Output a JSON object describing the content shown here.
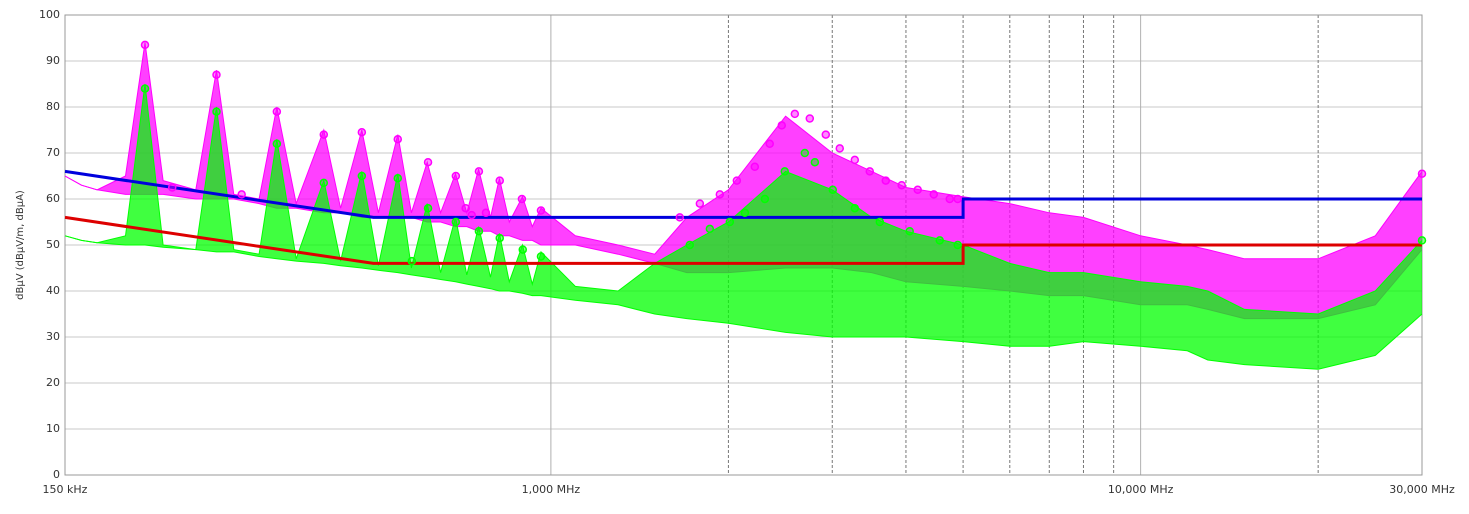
{
  "chart_data": {
    "type": "line",
    "y_label": "dBµV  (dBµV/m, dBµA)",
    "xscale": "log",
    "xlim": [
      0.15,
      30
    ],
    "ylim": [
      0,
      100
    ],
    "xticks": [
      {
        "value": 0.15,
        "label": "150 kHz"
      },
      {
        "value": 1,
        "label": "1,000 MHz"
      },
      {
        "value": 10,
        "label": "10,000 MHz"
      },
      {
        "value": 30,
        "label": "30,000 MHz"
      }
    ],
    "xminor": [
      2,
      3,
      4,
      5,
      6,
      7,
      8,
      9,
      20
    ],
    "yticks": [
      0,
      10,
      20,
      30,
      40,
      50,
      60,
      70,
      80,
      90,
      100
    ],
    "grid": true,
    "series": [
      {
        "color": "#ff00ff",
        "x": [
          0.15,
          0.16,
          0.17,
          0.19,
          0.205,
          0.22,
          0.25,
          0.271,
          0.29,
          0.32,
          0.343,
          0.37,
          0.412,
          0.44,
          0.478,
          0.51,
          0.55,
          0.58,
          0.617,
          0.65,
          0.689,
          0.72,
          0.754,
          0.79,
          0.818,
          0.85,
          0.895,
          0.93,
          0.962,
          1.1,
          1.3,
          1.5,
          1.7,
          2,
          2.5,
          3,
          3.5,
          4,
          5,
          6,
          7,
          8,
          10,
          12,
          13,
          15,
          20,
          25,
          30
        ],
        "values": [
          65,
          63,
          62,
          65,
          94,
          64,
          62,
          88,
          61,
          60,
          80,
          59,
          75,
          58,
          75,
          57,
          74,
          57,
          68,
          57,
          65.5,
          57,
          66.5,
          56,
          64.5,
          55,
          60.5,
          54,
          58,
          52,
          50,
          48,
          56,
          62,
          78,
          70,
          66,
          62.5,
          60.5,
          59,
          57,
          56,
          52,
          50,
          49,
          47,
          47,
          52,
          66
        ],
        "low": [
          65,
          63,
          62,
          61,
          61,
          61,
          60,
          60,
          60,
          59,
          58,
          58,
          57,
          57,
          56,
          56,
          56,
          56,
          55,
          55,
          54,
          54,
          53,
          53,
          52,
          52,
          51,
          51,
          50,
          50,
          48,
          46,
          44,
          44,
          45,
          45,
          44,
          42,
          41,
          40,
          39,
          39,
          37,
          37,
          36,
          34,
          34,
          37,
          49
        ]
      },
      {
        "color": "#00ff00",
        "x": [
          0.15,
          0.16,
          0.17,
          0.19,
          0.205,
          0.22,
          0.25,
          0.271,
          0.29,
          0.32,
          0.343,
          0.37,
          0.412,
          0.44,
          0.478,
          0.51,
          0.55,
          0.58,
          0.617,
          0.65,
          0.689,
          0.72,
          0.754,
          0.79,
          0.818,
          0.85,
          0.895,
          0.93,
          0.962,
          1.1,
          1.3,
          1.5,
          1.7,
          2,
          2.5,
          3,
          3.5,
          4,
          5,
          6,
          7,
          8,
          10,
          12,
          13,
          15,
          20,
          25,
          30
        ],
        "values": [
          52,
          51,
          50.5,
          52,
          85,
          50,
          49,
          80,
          49,
          48,
          73,
          47,
          64,
          46.5,
          66,
          45.5,
          65.5,
          45,
          59,
          44,
          56,
          43.5,
          54,
          43,
          52.5,
          42,
          50,
          41.5,
          48.5,
          41,
          40,
          46,
          50,
          55,
          66,
          62,
          56,
          53,
          50,
          46,
          44,
          44,
          42,
          41,
          40,
          36,
          35,
          40,
          51
        ],
        "low": [
          52,
          51,
          50.5,
          50,
          50,
          49.5,
          49,
          48.5,
          48.5,
          47.5,
          47,
          46.5,
          46,
          45.5,
          45,
          44.5,
          44,
          43.5,
          43,
          42.5,
          42,
          41.5,
          41,
          40.5,
          40,
          40,
          39.5,
          39,
          39,
          38,
          37,
          35,
          34,
          33,
          31,
          30,
          30,
          30,
          29,
          28,
          28,
          29,
          28,
          27,
          25,
          24,
          23,
          26,
          35
        ]
      },
      {
        "color": "#0000dd",
        "x": [
          0.15,
          0.5,
          5,
          5,
          30
        ],
        "values": [
          66,
          56,
          56,
          60,
          60
        ]
      },
      {
        "color": "#dd0000",
        "x": [
          0.15,
          0.5,
          5,
          5,
          30
        ],
        "values": [
          56,
          46,
          46,
          50,
          50
        ]
      },
      {
        "color": "#ff00ff",
        "marker": "circle",
        "x": [
          0.205,
          0.228,
          0.271,
          0.299,
          0.343,
          0.412,
          0.478,
          0.55,
          0.619,
          0.69,
          0.717,
          0.734,
          0.755,
          0.776,
          0.819,
          0.893,
          0.962,
          1.654,
          1.789,
          1.934,
          2.067,
          2.217,
          2.35,
          2.463,
          2.592,
          2.748,
          2.925,
          3.089,
          3.276,
          3.473,
          3.697,
          3.934,
          4.188,
          4.459,
          4.746,
          4.896,
          30
        ],
        "values": [
          93.5,
          62.5,
          87,
          61,
          79,
          74,
          74.5,
          73,
          68,
          65,
          58,
          56.5,
          66,
          57,
          64,
          60,
          57.5,
          56,
          59,
          61,
          64,
          67,
          72,
          76,
          78.5,
          77.5,
          74,
          71,
          68.5,
          66,
          64,
          63,
          62,
          61,
          60,
          60,
          65.5
        ]
      },
      {
        "color": "#00ff00",
        "marker": "circle",
        "x": [
          0.205,
          0.271,
          0.343,
          0.412,
          0.478,
          0.55,
          0.581,
          0.619,
          0.69,
          0.755,
          0.819,
          0.896,
          0.962,
          1.72,
          1.86,
          2.011,
          2.133,
          2.306,
          2.492,
          2.695,
          2.803,
          3.006,
          3.276,
          3.612,
          4.059,
          4.564,
          4.896,
          30
        ],
        "values": [
          84,
          79,
          72,
          63.5,
          65,
          64.5,
          46.5,
          58,
          55,
          53,
          51.5,
          49,
          47.5,
          50,
          53.5,
          55,
          57,
          60,
          66,
          70,
          68,
          62,
          58,
          55,
          53,
          51,
          50,
          51
        ]
      }
    ]
  }
}
